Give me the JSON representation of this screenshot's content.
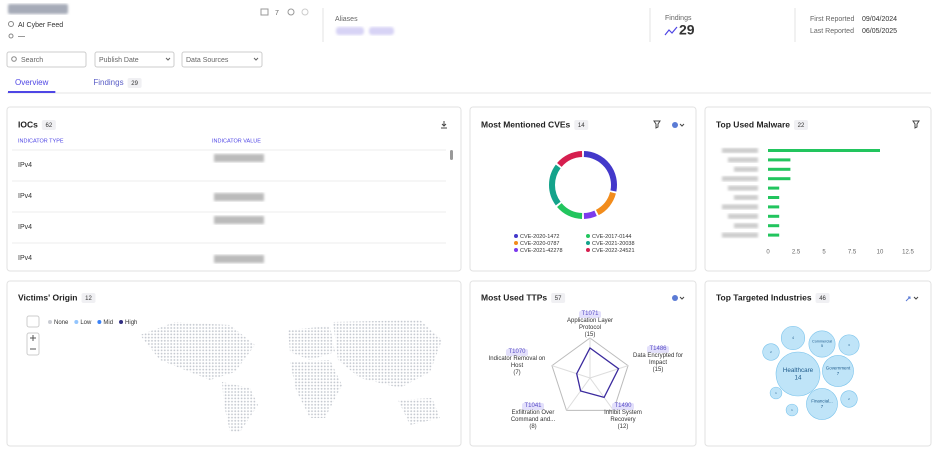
{
  "header": {
    "source": "AI Cyber Feed",
    "location": "—",
    "icon_count": 7,
    "aliases_label": "Aliases",
    "findings_label": "Findings",
    "findings": 29,
    "first_reported_label": "First Reported",
    "first_reported": "09/04/2024",
    "last_reported_label": "Last Reported",
    "last_reported": "06/05/2025"
  },
  "filters": [
    "Search",
    "Publish Date",
    "Data Sources"
  ],
  "tabs": [
    {
      "label": "Overview",
      "active": true
    },
    {
      "label": "Findings",
      "count": 29,
      "active": false
    }
  ],
  "iocs": {
    "title": "IOCs",
    "count": 62,
    "columns": [
      "INDICATOR TYPE",
      "INDICATOR VALUE"
    ],
    "rows": [
      "IPv4",
      "IPv4",
      "IPv4",
      "IPv4"
    ]
  },
  "cves": {
    "type": "donut",
    "title": "Most Mentioned CVEs",
    "count": 14,
    "categories": [
      "CVE-2020-1472",
      "CVE-2020-0787",
      "CVE-2021-42278",
      "CVE-2017-0144",
      "CVE-2021-20038",
      "CVE-2022-24521"
    ],
    "values": [
      4,
      2,
      1,
      2,
      3,
      2
    ],
    "colors": [
      "#4338ca",
      "#f28c1c",
      "#7c3aed",
      "#22c55e",
      "#14a38b",
      "#d61f4f"
    ]
  },
  "malware": {
    "type": "hbar",
    "title": "Top Used Malware",
    "count": 22,
    "categories": [
      null,
      null,
      null,
      null,
      null,
      null,
      null,
      null,
      null,
      null
    ],
    "values": [
      10,
      2,
      2,
      2,
      1,
      1,
      1,
      1,
      1,
      1
    ],
    "color": "#22c55e",
    "xlim": [
      0,
      12.5
    ],
    "xticks": [
      0,
      2.5,
      5,
      7.5,
      10,
      12.5
    ]
  },
  "victims": {
    "type": "map",
    "title": "Victims' Origin",
    "count": 12,
    "legend": [
      {
        "label": "None",
        "color": "#c9ccd3"
      },
      {
        "label": "Low",
        "color": "#93c5fd"
      },
      {
        "label": "Mid",
        "color": "#3b82f6"
      },
      {
        "label": "High",
        "color": "#312e81"
      }
    ]
  },
  "ttps": {
    "type": "radar",
    "title": "Most Used TTPs",
    "count": 57,
    "ids": [
      "T1071",
      "T1486",
      "T1490",
      "T1041",
      "T1070"
    ],
    "categories": [
      "Application Layer Protocol",
      "Data Encrypted for Impact",
      "Inhibit System Recovery",
      "Exfiltration Over Command and...",
      "Indicator Removal on Host"
    ],
    "values": [
      15,
      15,
      12,
      8,
      7
    ],
    "value_labels": [
      "(15)",
      "(15)",
      "(12)",
      "(8)",
      "(7)"
    ],
    "rlim": [
      0,
      20
    ],
    "color": "#3b2a9e"
  },
  "industries": {
    "type": "bubble",
    "title": "Top Targeted Industries",
    "count": 46,
    "categories": [
      "Healthcare",
      "Government",
      "Financial...",
      "Commercial",
      null,
      null,
      null,
      null,
      null,
      null
    ],
    "values": [
      14,
      7,
      7,
      5,
      4,
      3,
      2,
      2,
      1,
      1
    ],
    "color": "#bfe4f8"
  }
}
